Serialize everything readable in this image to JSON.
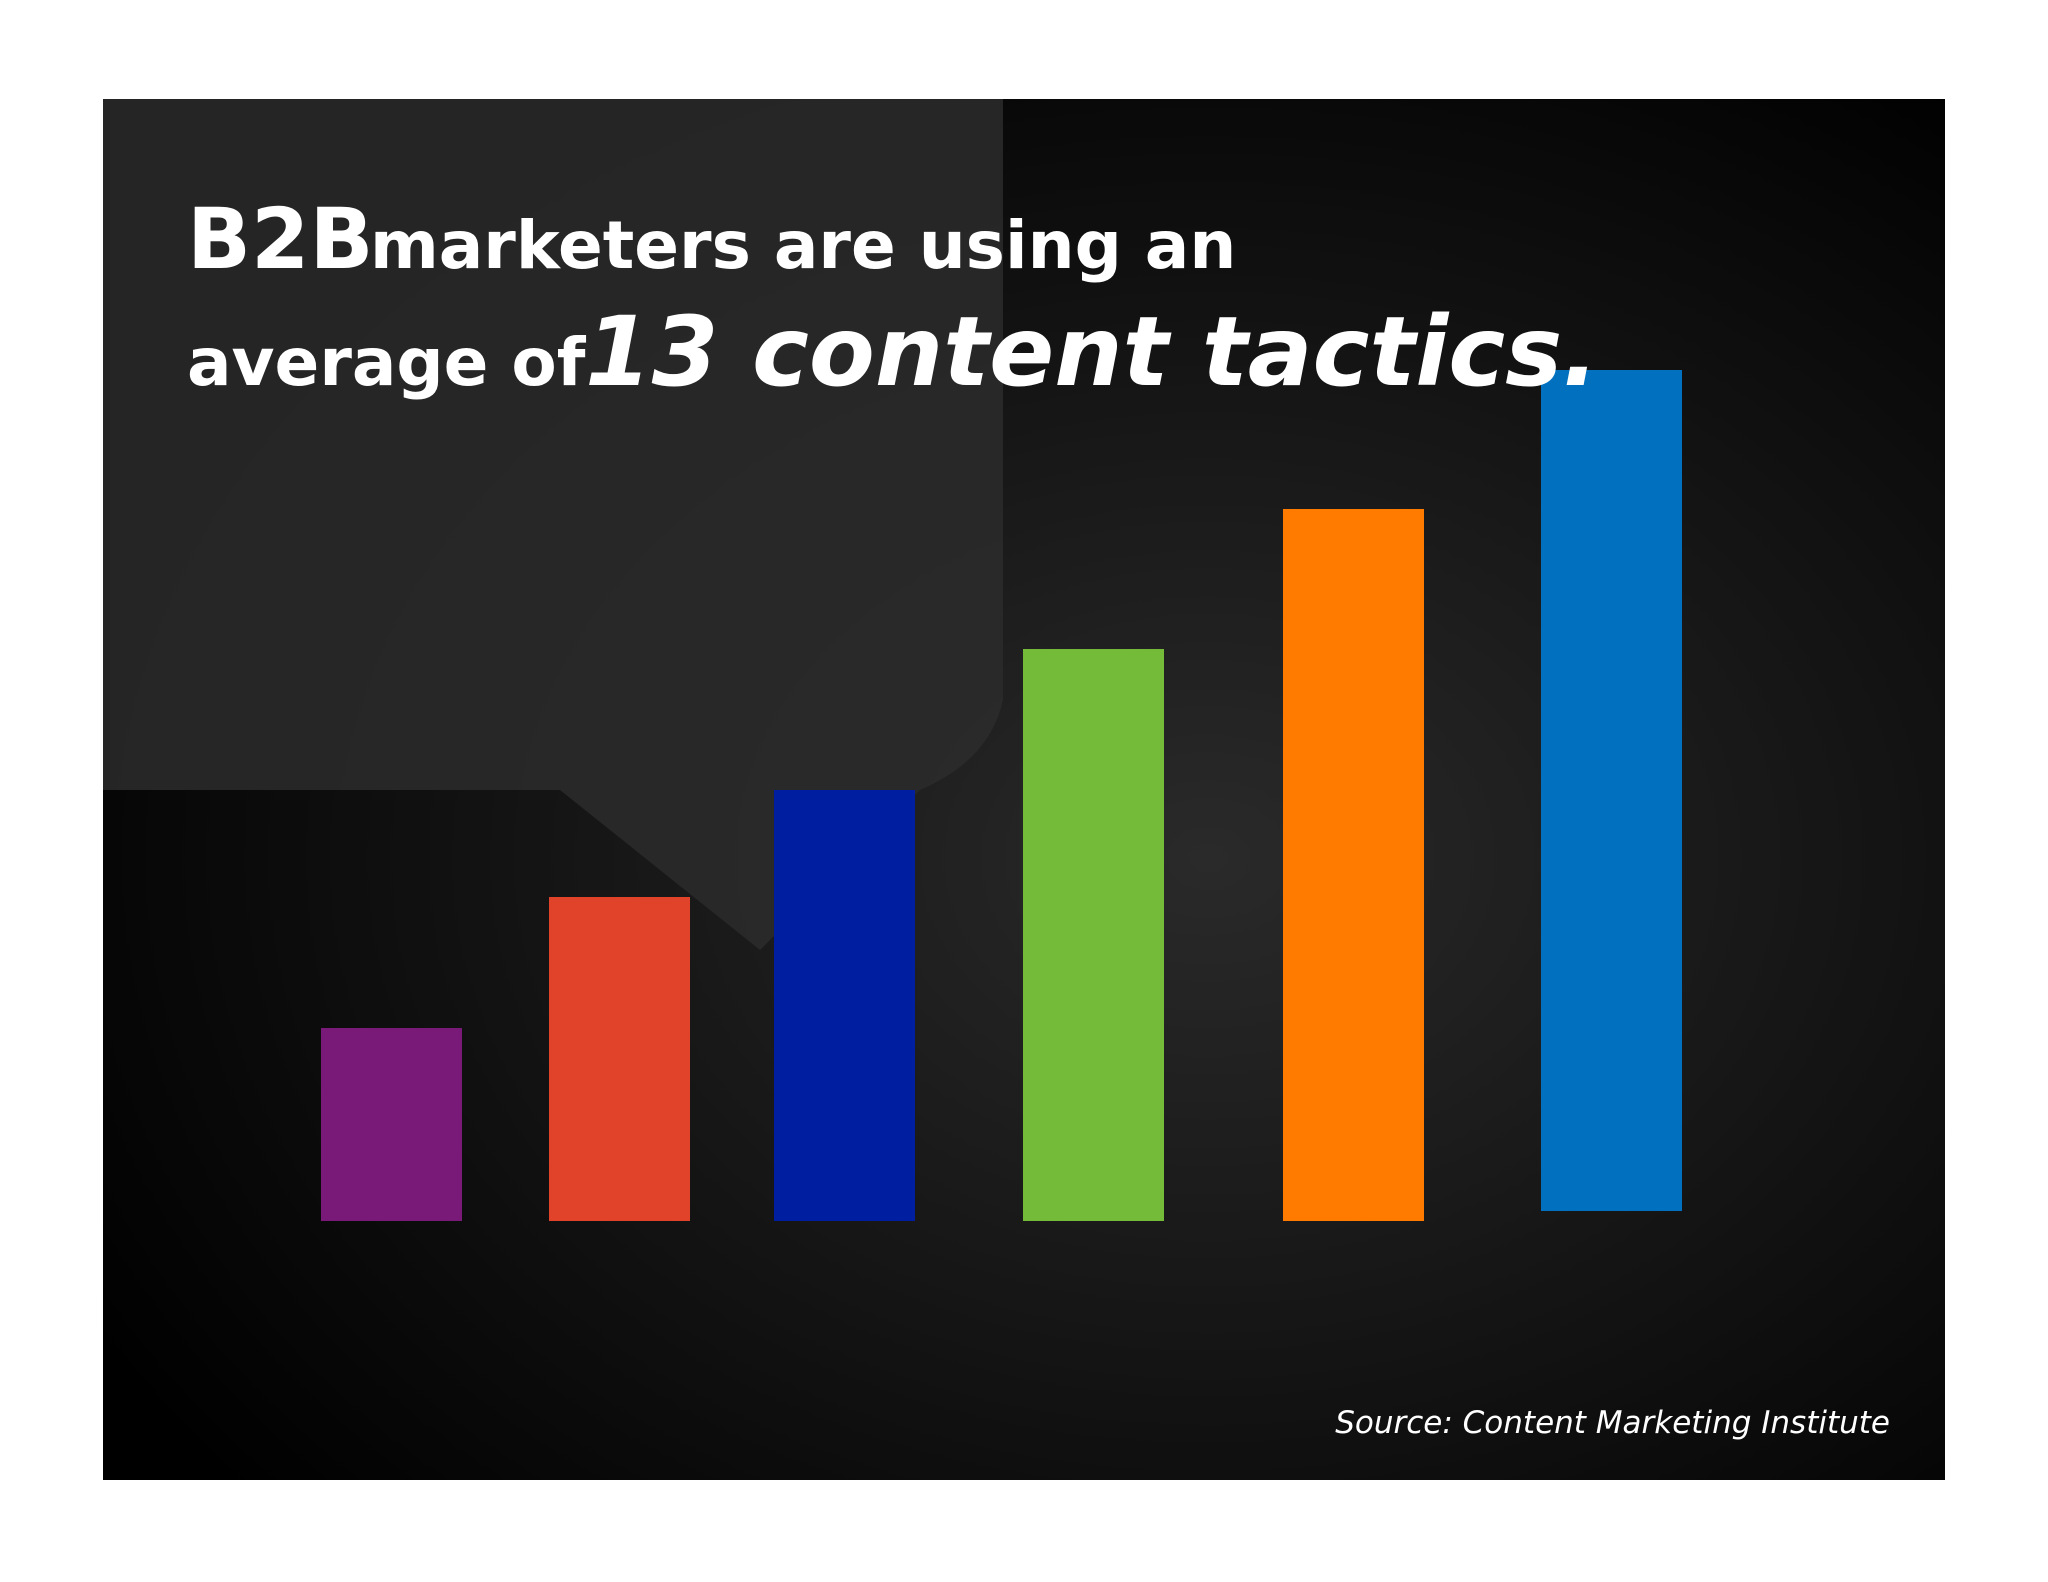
{
  "title": {
    "line1": {
      "emphasis": "B2B",
      "rest": "marketers are using an"
    },
    "line2": {
      "lead": "average of",
      "emphasis": "13 content tactics."
    }
  },
  "source": "Source: Content Marketing Institute"
}
